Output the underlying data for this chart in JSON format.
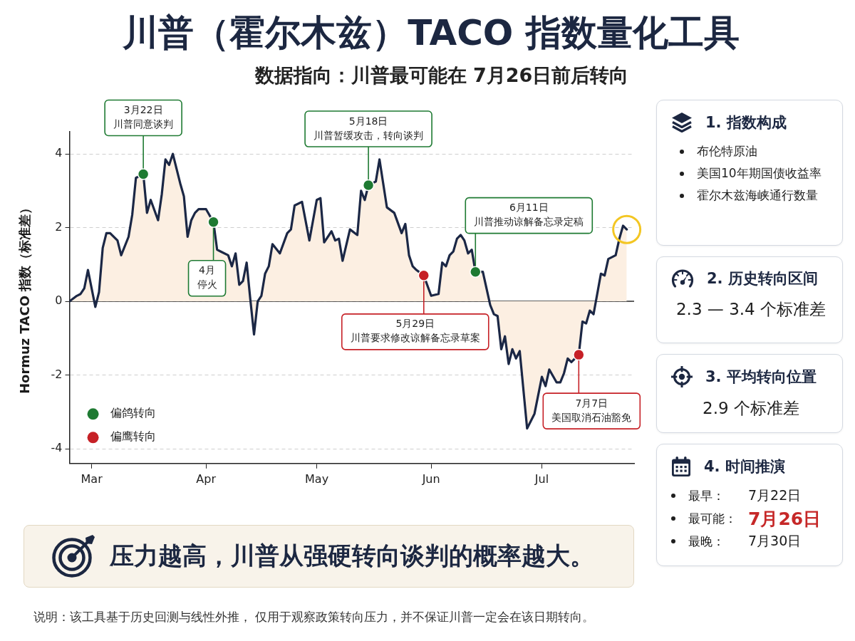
{
  "chart_data": [
    {
      "type": "area",
      "title": "川普（霍尔木兹）TACO 指数量化工具",
      "subtitle": "数据指向：川普最可能在 7月26日前后转向",
      "ylabel": "Hormuz TACO 指数（标准差）",
      "x": [
        "--02-23",
        "--02-25",
        "--02-26",
        "--02-27",
        "--02-28",
        "--03-02",
        "--03-03",
        "--03-04",
        "--03-05",
        "--03-06",
        "--03-08",
        "--03-09",
        "--03-11",
        "--03-12",
        "--03-13",
        "--03-14",
        "--03-15",
        "--03-16",
        "--03-17",
        "--03-19",
        "--03-20",
        "--03-21",
        "--03-22",
        "--03-23",
        "--03-25",
        "--03-26",
        "--03-27",
        "--03-28",
        "--03-29",
        "--03-30",
        "--04-01",
        "--04-03",
        "--04-04",
        "--04-05",
        "--04-07",
        "--04-08",
        "--04-09",
        "--04-10",
        "--04-11",
        "--04-12",
        "--04-13",
        "--04-14",
        "--04-15",
        "--04-16",
        "--04-17",
        "--04-18",
        "--04-19",
        "--04-21",
        "--04-23",
        "--04-24",
        "--04-25",
        "--04-27",
        "--04-29",
        "--05-01",
        "--05-02",
        "--05-03",
        "--05-05",
        "--05-06",
        "--05-07",
        "--05-08",
        "--05-10",
        "--05-12",
        "--05-13",
        "--05-14",
        "--05-15",
        "--05-17",
        "--05-18",
        "--05-20",
        "--05-22",
        "--05-24",
        "--05-25",
        "--05-26",
        "--05-27",
        "--05-28",
        "--05-30",
        "--06-01",
        "--06-03",
        "--06-04",
        "--06-05",
        "--06-06",
        "--06-07",
        "--06-08",
        "--06-09",
        "--06-10",
        "--06-11",
        "--06-12",
        "--06-13",
        "--06-15",
        "--06-16",
        "--06-17",
        "--06-18",
        "--06-19",
        "--06-20",
        "--06-21",
        "--06-22",
        "--06-23",
        "--06-24",
        "--06-25",
        "--06-27",
        "--06-29",
        "--07-01",
        "--07-02",
        "--07-03",
        "--07-05",
        "--07-06",
        "--07-07",
        "--07-08",
        "--07-09",
        "--07-11",
        "--07-12",
        "--07-13",
        "--07-14",
        "--07-15",
        "--07-17",
        "--07-18",
        "--07-19",
        "--07-21",
        "--07-22",
        "--07-23",
        "--07-24"
      ],
      "series": [
        {
          "type": "area",
          "color": "#fcefe2",
          "values": [
            0.0,
            0.15,
            0.2,
            0.35,
            0.85,
            -0.15,
            0.25,
            1.45,
            1.85,
            1.85,
            1.65,
            1.25,
            1.75,
            2.35,
            3.35,
            3.4,
            3.45,
            2.4,
            2.75,
            2.2,
            2.9,
            3.85,
            3.7,
            4.0,
            3.2,
            2.85,
            1.75,
            2.2,
            2.4,
            2.5,
            2.5,
            2.15,
            1.4,
            1.35,
            1.25,
            0.95,
            1.3,
            0.45,
            0.55,
            1.05,
            0.05,
            -0.9,
            0.0,
            0.15,
            0.75,
            0.95,
            1.55,
            1.3,
            1.85,
            1.95,
            2.6,
            2.7,
            1.65,
            2.75,
            2.8,
            1.6,
            1.9,
            1.65,
            1.7,
            1.1,
            1.95,
            1.8,
            3.0,
            2.75,
            3.15,
            3.25,
            3.85,
            2.55,
            2.4,
            1.85,
            2.1,
            1.25,
            0.95,
            0.85,
            0.7,
            0.15,
            0.2,
            1.05,
            0.95,
            1.25,
            1.35,
            1.7,
            1.8,
            1.65,
            1.3,
            1.4,
            0.8,
            0.8,
            0.35,
            -0.1,
            -0.35,
            -0.4,
            -1.3,
            -0.95,
            -1.7,
            -1.3,
            -1.55,
            -1.35,
            -3.45,
            -3.05,
            -2.05,
            -2.3,
            -1.85,
            -2.2,
            -2.2,
            -1.95,
            -1.55,
            -1.65,
            -1.45,
            -0.55,
            -0.6,
            -0.25,
            -0.35,
            0.75,
            0.7,
            1.15,
            1.25,
            1.7,
            2.05,
            1.95
          ]
        },
        {
          "type": "scatter",
          "name": "偏鸽转向",
          "color": "#1e7a32",
          "x": [
            "--03-15",
            "--04-03",
            "--05-15",
            "--06-13"
          ],
          "values": [
            3.45,
            2.15,
            3.15,
            0.8
          ]
        },
        {
          "type": "scatter",
          "name": "偏鹰转向",
          "color": "#c62026",
          "x": [
            "--05-30",
            "--07-11"
          ],
          "values": [
            0.7,
            -1.45
          ]
        }
      ],
      "xlim": [
        "--02-23",
        "--07-26"
      ],
      "xticks": [
        {
          "value": "--03-01",
          "label": "Mar"
        },
        {
          "value": "--04-01",
          "label": "Apr"
        },
        {
          "value": "--05-01",
          "label": "May"
        },
        {
          "value": "--06-01",
          "label": "Jun"
        },
        {
          "value": "--07-01",
          "label": "Jul"
        }
      ],
      "ylim": [
        -4.4,
        4.6
      ],
      "yticks": [
        -4,
        -2,
        0,
        2,
        4
      ],
      "grid": "y",
      "legend": "bottom left",
      "ref_lines": [
        {
          "axis": "y",
          "value": 0,
          "color": "#2b2b2b"
        }
      ],
      "annotations": [
        {
          "text": "3月22日川普同意谈判",
          "x": "--03-15",
          "y": 3.45
        },
        {
          "text": "4月停火",
          "x": "--04-03",
          "y": 2.15
        },
        {
          "text": "5月18日川普暂缓攻击，转向谈判",
          "x": "--05-15",
          "y": 3.15
        },
        {
          "text": "5月29日川普要求修改谅解备忘录草案",
          "x": "--05-30",
          "y": 0.7
        },
        {
          "text": "6月11日川普推动谅解备忘录定稿",
          "x": "--06-13",
          "y": 0.8
        },
        {
          "text": "7月7日美国取消石油豁免",
          "x": "--07-11",
          "y": -1.45
        },
        "压力越高，川普从强硬转向谈判的概率越大。",
        "说明：该工具基于历史回测与线性外推， 仅用于观察政策转向压力，并不保证川普一定会在该日期转向。"
      ]
    },
    {
      "type": "other",
      "title": "1. 指数构成",
      "annotations": [
        "布伦特原油",
        "美国10年期国债收益率",
        "霍尔木兹海峡通行数量"
      ]
    },
    {
      "type": "other",
      "title": "2. 历史转向区间",
      "annotations": [
        "2.3 — 3.4 个标准差"
      ]
    },
    {
      "type": "other",
      "title": "3. 平均转向位置",
      "annotations": [
        "2.9 个标准差"
      ]
    },
    {
      "type": "other",
      "title": "4. 时间推演",
      "annotations": [
        "最早：",
        "7月22日",
        "最可能：",
        "7月26日",
        "最晚：",
        "7月30日"
      ],
      "colors": [
        "#1a1a1a",
        "#1a1a1a",
        "#1a1a1a",
        "#c62828",
        "#1a1a1a",
        "#1a1a1a"
      ]
    }
  ]
}
